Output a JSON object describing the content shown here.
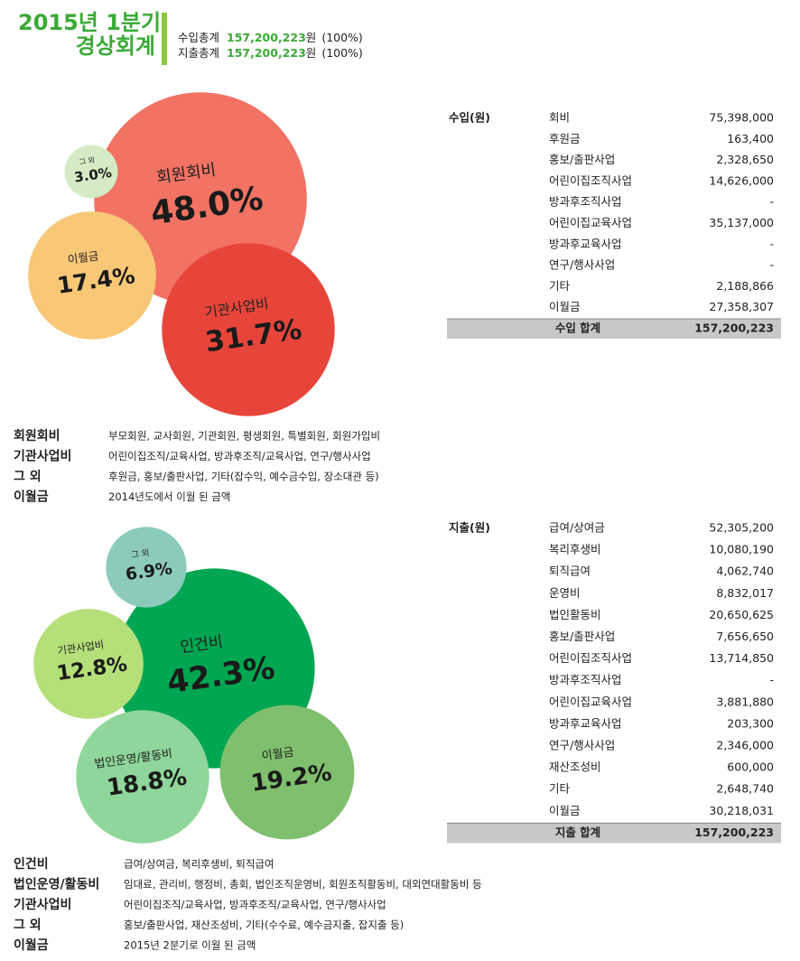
{
  "header": {
    "title": [
      "2015년 1분기",
      "경상회계"
    ],
    "summary": [
      [
        "수입총계",
        "157,200,223",
        "원",
        "(100%)"
      ],
      [
        "지출총계",
        "157,200,223",
        "원",
        "(100%)"
      ]
    ]
  },
  "chart_data": [
    {
      "type": "bubble",
      "categories": [
        "회원회비",
        "기관사업비",
        "이월금",
        "그 외"
      ],
      "values": [
        48.0,
        31.7,
        17.4,
        3.0
      ],
      "value_labels": [
        "48.0%",
        "31.7%",
        "17.4%",
        "3.0%"
      ],
      "colors": [
        "#f27264",
        "#e8453a",
        "#f9c877",
        "#d5ebc5"
      ]
    },
    {
      "type": "bubble",
      "categories": [
        "인건비",
        "그 외",
        "기관사업비",
        "법인운영/활동비",
        "이월금"
      ],
      "values": [
        42.3,
        6.9,
        12.8,
        18.8,
        19.2
      ],
      "value_labels": [
        "42.3%",
        "6.9%",
        "12.8%",
        "18.8%",
        "19.2%"
      ],
      "colors": [
        "#00a651",
        "#8ccbbb",
        "#b5df78",
        "#8fd69a",
        "#7fbf6d"
      ]
    }
  ],
  "tables": [
    {
      "heading": "수입(원)",
      "rows": [
        [
          "회비",
          "75,398,000"
        ],
        [
          "후원금",
          "163,400"
        ],
        [
          "홍보/출판사업",
          "2,328,650"
        ],
        [
          "어린이집조직사업",
          "14,626,000"
        ],
        [
          "방과후조직사업",
          "-"
        ],
        [
          "어린이집교육사업",
          "35,137,000"
        ],
        [
          "방과후교육사업",
          "-"
        ],
        [
          "연구/행사사업",
          "-"
        ],
        [
          "기타",
          "2,188,866"
        ],
        [
          "이월금",
          "27,358,307"
        ]
      ],
      "total": [
        "수입 합계",
        "157,200,223"
      ]
    },
    {
      "heading": "지출(원)",
      "rows": [
        [
          "급여/상여금",
          "52,305,200"
        ],
        [
          "복리후생비",
          "10,080,190"
        ],
        [
          "퇴직급여",
          "4,062,740"
        ],
        [
          "운영비",
          "8,832,017"
        ],
        [
          "법인활동비",
          "20,650,625"
        ],
        [
          "홍보/출판사업",
          "7,656,650"
        ],
        [
          "어린이집조직사업",
          "13,714,850"
        ],
        [
          "방과후조직사업",
          "-"
        ],
        [
          "어린이집교육사업",
          "3,881,880"
        ],
        [
          "방과후교육사업",
          "203,300"
        ],
        [
          "연구/행사사업",
          "2,346,000"
        ],
        [
          "재산조성비",
          "600,000"
        ],
        [
          "기타",
          "2,648,740"
        ],
        [
          "이월금",
          "30,218,031"
        ]
      ],
      "total": [
        "지출 합계",
        "157,200,223"
      ]
    }
  ],
  "notes": [
    [
      [
        "회원회비",
        "부모회원, 교사회원, 기관회원, 평생회원, 특별회원, 회원가입비"
      ],
      [
        "기관사업비",
        "어린이집조직/교육사업, 방과후조직/교육사업, 연구/행사사업"
      ],
      [
        "그 외",
        "후원금, 홍보/출판사업, 기타(잡수익, 예수금수입, 장소대관 등)"
      ],
      [
        "이월금",
        "2014년도에서 이월 된 금액"
      ]
    ],
    [
      [
        "인건비",
        "급여/상여금, 복리후생비, 퇴직급여"
      ],
      [
        "법인운영/활동비",
        "임대료, 관리비, 행정비, 총회, 법인조직운영비, 회원조직활동비, 대외연대활동비 등"
      ],
      [
        "기관사업비",
        "어린이집조직/교육사업, 방과후조직/교육사업, 연구/행사사업"
      ],
      [
        "그 외",
        "홍보/출판사업, 재산조성비, 기타(수수료, 예수금지출, 잡지출 등)"
      ],
      [
        "이월금",
        "2015년 2분기로 이월 된 금액"
      ]
    ]
  ]
}
